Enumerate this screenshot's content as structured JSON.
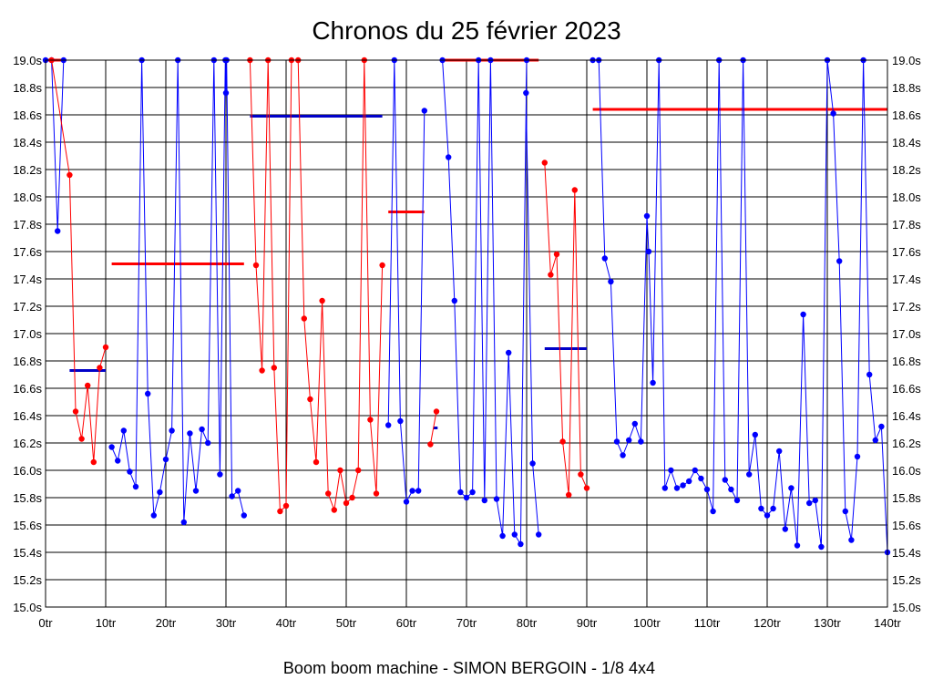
{
  "chart_data": {
    "type": "line",
    "title": "Chronos du 25 février 2023",
    "subtitle": "Boom boom machine - SIMON BERGOIN - 1/8 4x4",
    "xlabel": "",
    "ylabel": "",
    "xlim": [
      0,
      140
    ],
    "ylim": [
      15.0,
      19.0
    ],
    "x_unit": "tr",
    "x_tick_step": 10,
    "y_tick_step": 0.2,
    "grid": true,
    "legend": "none",
    "y_axis_both_sides": true,
    "colors": {
      "blue": "#0000ff",
      "red": "#ff0000",
      "avg_blue": "#0000c8",
      "grid": "#000000"
    },
    "series": [
      {
        "color": "blue",
        "points": [
          [
            0,
            19.0
          ],
          [
            1,
            19.0
          ],
          [
            2,
            17.75
          ],
          [
            3,
            19.0
          ]
        ]
      },
      {
        "color": "red",
        "points": [
          [
            1,
            19.0
          ],
          [
            4,
            18.16
          ],
          [
            5,
            16.43
          ],
          [
            6,
            16.23
          ],
          [
            7,
            16.62
          ],
          [
            8,
            16.06
          ],
          [
            9,
            16.75
          ],
          [
            10,
            16.9
          ]
        ]
      },
      {
        "color": "blue",
        "points": [
          [
            11,
            16.17
          ],
          [
            12,
            16.07
          ],
          [
            13,
            16.29
          ],
          [
            14,
            15.99
          ],
          [
            15,
            15.88
          ],
          [
            16,
            19.0
          ],
          [
            17,
            16.56
          ],
          [
            18,
            15.67
          ],
          [
            19,
            15.84
          ],
          [
            20,
            16.08
          ],
          [
            21,
            16.29
          ],
          [
            22,
            19.0
          ],
          [
            23,
            15.62
          ],
          [
            24,
            16.27
          ],
          [
            25,
            15.85
          ],
          [
            26,
            16.3
          ],
          [
            27,
            16.2
          ],
          [
            28,
            19.0
          ],
          [
            29,
            15.97
          ],
          [
            29.9,
            19.0
          ],
          [
            30,
            18.76
          ],
          [
            30.1,
            19.0
          ],
          [
            31,
            15.81
          ],
          [
            32,
            15.85
          ],
          [
            33,
            15.67
          ]
        ]
      },
      {
        "color": "red",
        "points": [
          [
            34,
            19.0
          ],
          [
            35,
            17.5
          ],
          [
            36,
            16.73
          ],
          [
            37,
            19.0
          ],
          [
            38,
            16.75
          ],
          [
            39,
            15.7
          ],
          [
            40,
            15.74
          ],
          [
            40.9,
            19.0
          ],
          [
            42,
            19.0
          ],
          [
            43,
            17.11
          ],
          [
            44,
            16.52
          ],
          [
            45,
            16.06
          ],
          [
            46,
            17.24
          ],
          [
            47,
            15.83
          ],
          [
            48,
            15.71
          ],
          [
            49,
            16.0
          ],
          [
            50,
            15.76
          ],
          [
            51,
            15.8
          ],
          [
            52,
            16.0
          ],
          [
            53,
            19.0
          ],
          [
            54,
            16.37
          ],
          [
            55,
            15.83
          ],
          [
            56,
            17.5
          ]
        ]
      },
      {
        "color": "blue",
        "points": [
          [
            57,
            16.33
          ],
          [
            58,
            19.0
          ],
          [
            59,
            16.36
          ],
          [
            60,
            15.77
          ],
          [
            61,
            15.85
          ],
          [
            62,
            15.85
          ],
          [
            63,
            18.63
          ]
        ]
      },
      {
        "color": "red",
        "points": [
          [
            64,
            16.19
          ],
          [
            65,
            16.43
          ]
        ]
      },
      {
        "color": "blue",
        "points": [
          [
            66,
            19.0
          ],
          [
            67,
            18.29
          ],
          [
            68,
            17.24
          ],
          [
            69,
            15.84
          ],
          [
            70,
            15.8
          ],
          [
            71,
            15.84
          ],
          [
            72,
            19.0
          ],
          [
            73,
            15.78
          ],
          [
            74,
            19.0
          ],
          [
            75,
            15.79
          ],
          [
            76,
            15.52
          ],
          [
            77,
            16.86
          ],
          [
            78,
            15.53
          ],
          [
            79,
            15.46
          ],
          [
            80,
            19.0
          ],
          [
            79.9,
            18.76
          ],
          [
            81,
            16.05
          ],
          [
            82,
            15.53
          ]
        ]
      },
      {
        "color": "red",
        "points": [
          [
            83,
            18.25
          ],
          [
            84,
            17.43
          ],
          [
            85,
            17.58
          ],
          [
            86,
            16.21
          ],
          [
            87,
            15.82
          ],
          [
            88,
            18.05
          ],
          [
            89,
            15.97
          ],
          [
            90,
            15.87
          ]
        ]
      },
      {
        "color": "blue",
        "points": [
          [
            91,
            19.0
          ],
          [
            92,
            19.0
          ],
          [
            93,
            17.55
          ],
          [
            94,
            17.38
          ],
          [
            95,
            16.21
          ],
          [
            96,
            16.11
          ],
          [
            97,
            16.22
          ],
          [
            98,
            16.34
          ],
          [
            99,
            16.21
          ],
          [
            100,
            17.86
          ],
          [
            100.3,
            17.6
          ],
          [
            101,
            16.64
          ],
          [
            102,
            19.0
          ],
          [
            103,
            15.87
          ],
          [
            104,
            16.0
          ],
          [
            105,
            15.87
          ],
          [
            106,
            15.89
          ],
          [
            107,
            15.92
          ],
          [
            108,
            16.0
          ],
          [
            109,
            15.94
          ],
          [
            110,
            15.86
          ],
          [
            111,
            15.7
          ],
          [
            112,
            19.0
          ],
          [
            113,
            15.93
          ],
          [
            114,
            15.86
          ],
          [
            115,
            15.78
          ],
          [
            116,
            19.0
          ],
          [
            117,
            15.97
          ],
          [
            118,
            16.26
          ],
          [
            119,
            15.72
          ],
          [
            120,
            15.67
          ],
          [
            121,
            15.72
          ],
          [
            122,
            16.14
          ],
          [
            123,
            15.57
          ],
          [
            124,
            15.87
          ],
          [
            125,
            15.45
          ],
          [
            126,
            17.14
          ],
          [
            127,
            15.76
          ],
          [
            128,
            15.78
          ],
          [
            129,
            15.44
          ],
          [
            130,
            19.0
          ],
          [
            131,
            18.61
          ],
          [
            132,
            17.53
          ],
          [
            133,
            15.7
          ],
          [
            134,
            15.49
          ],
          [
            135,
            16.1
          ],
          [
            136,
            19.0
          ],
          [
            137,
            16.7
          ],
          [
            138,
            16.22
          ],
          [
            139,
            16.32
          ],
          [
            140,
            15.4
          ]
        ]
      }
    ],
    "average_lines": [
      {
        "color": "avg_blue",
        "x": [
          4,
          10
        ],
        "y": 16.73
      },
      {
        "color": "red",
        "x": [
          11,
          33
        ],
        "y": 17.51
      },
      {
        "color": "avg_blue",
        "x": [
          34,
          56
        ],
        "y": 18.59
      },
      {
        "color": "red",
        "x": [
          57,
          63
        ],
        "y": 17.89
      },
      {
        "color": "avg_blue",
        "x": [
          64.5,
          65.2
        ],
        "y": 16.31
      },
      {
        "color": "red",
        "x": [
          66,
          82
        ],
        "y": 19.0
      },
      {
        "color": "avg_blue",
        "x": [
          83,
          90
        ],
        "y": 16.89
      },
      {
        "color": "red",
        "x": [
          91,
          140
        ],
        "y": 18.64
      },
      {
        "color": "red",
        "x": [
          0,
          3
        ],
        "y": 19.0
      }
    ]
  }
}
